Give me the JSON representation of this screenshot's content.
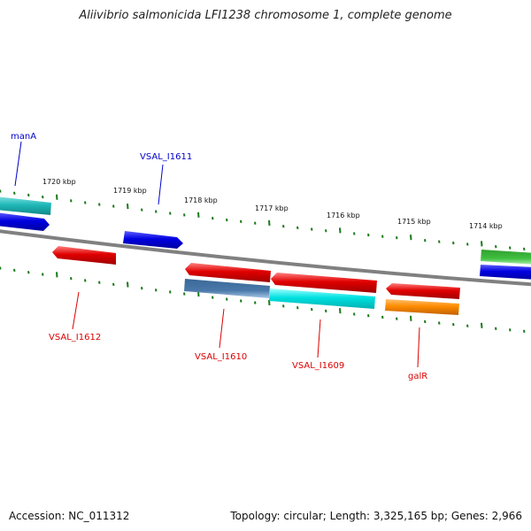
{
  "title": "Aliivibrio salmonicida LFI1238 chromosome 1, complete genome",
  "footer": {
    "accession": "Accession: NC_011312",
    "summary": "Topology: circular; Length: 3,325,165 bp; Genes: 2,966"
  },
  "scale_labels": [
    "1720 kbp",
    "1719 kbp",
    "1718 kbp",
    "1717 kbp",
    "1716 kbp",
    "1715 kbp",
    "1714 kbp"
  ],
  "gene_labels": {
    "manA": "manA",
    "VSAL_I1611": "VSAL_I1611",
    "VSAL_I1612": "VSAL_I1612",
    "VSAL_I1610": "VSAL_I1610",
    "VSAL_I1609": "VSAL_I1609",
    "galR": "galR"
  },
  "colors": {
    "forward_label": "#0000cc",
    "reverse_label": "#dd0000",
    "backbone": "#808080",
    "ticks": "#1a7a1a",
    "red": "#e00000",
    "blue": "#0000e0",
    "cyan": "#00d8d8",
    "teal": "#20b8b8",
    "steel": "#4a78a8",
    "orange": "#ff8c00",
    "green": "#2db82d"
  }
}
